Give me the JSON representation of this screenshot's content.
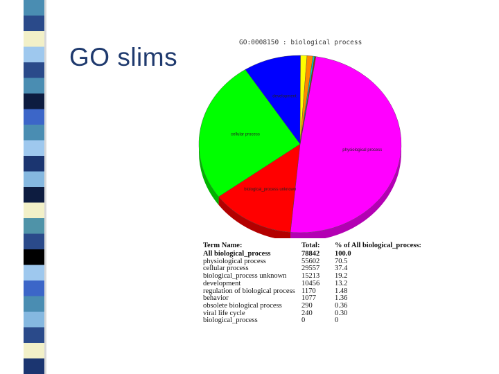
{
  "slide": {
    "title": "GO slims",
    "stripe_colors": [
      "#4a8db2",
      "#2a4a8a",
      "#f2f0c8",
      "#9ec8ee",
      "#0d1c40",
      "#3c66c8",
      "#1b3570",
      "#85b8e0",
      "#4f93a8",
      "#000000"
    ]
  },
  "chart_data": {
    "type": "pie",
    "title": "GO:0008150 : biological process",
    "slices": [
      {
        "label": "physiological process",
        "value": 70.5,
        "color": "#ff00ff"
      },
      {
        "label": "biological_process unknown",
        "value": 19.2,
        "color": "#ff0000"
      },
      {
        "label": "cellular process",
        "value": 37.4,
        "color": "#00ff00"
      },
      {
        "label": "development",
        "value": 13.2,
        "color": "#0000ff"
      },
      {
        "label": "regulation of biological process",
        "value": 1.48,
        "color": "#ffff00"
      },
      {
        "label": "behavior",
        "value": 1.36,
        "color": "#ff8800"
      },
      {
        "label": "obsolete biological process",
        "value": 0.36,
        "color": "#00cccc"
      },
      {
        "label": "viral life cycle",
        "value": 0.3,
        "color": "#884400"
      }
    ],
    "shown_labels": [
      "physiological process",
      "biological_process unknown",
      "cellular process",
      "development"
    ]
  },
  "table": {
    "headers": [
      "Term Name:",
      "Total:",
      "% of All biological_process:"
    ],
    "rows": [
      [
        "All biological_process",
        "78842",
        "100.0"
      ],
      [
        "physiological process",
        "55602",
        "70.5"
      ],
      [
        "cellular process",
        "29557",
        "37.4"
      ],
      [
        "biological_process unknown",
        "15213",
        "19.2"
      ],
      [
        "development",
        "10456",
        "13.2"
      ],
      [
        "regulation of biological process",
        "1170",
        "1.48"
      ],
      [
        "behavior",
        "1077",
        "1.36"
      ],
      [
        "obsolete biological process",
        "290",
        "0.36"
      ],
      [
        "viral life cycle",
        "240",
        "0.30"
      ],
      [
        "biological_process",
        "0",
        "0"
      ]
    ]
  }
}
